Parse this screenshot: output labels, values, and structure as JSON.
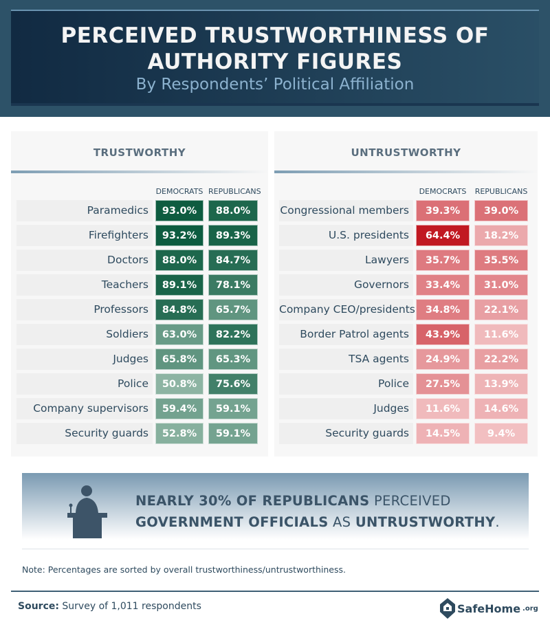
{
  "header": {
    "title_line1": "PERCEIVED TRUSTWORTHINESS OF",
    "title_line2": "AUTHORITY FIGURES",
    "subtitle": "By Respondents’ Political Affiliation"
  },
  "colors": {
    "banner": "#2d5268",
    "trust_high": "#0b5a3e",
    "trust_low": "#8fb6a5",
    "untrust_high": "#c0141e",
    "untrust_low": "#f2c0c2"
  },
  "chart_data": [
    {
      "type": "table",
      "title": "TRUSTWORTHY",
      "columns": [
        "DEMOCRATS",
        "REPUBLICANS"
      ],
      "rows": [
        {
          "label": "Paramedics",
          "values": [
            "93.0%",
            "88.0%"
          ]
        },
        {
          "label": "Firefighters",
          "values": [
            "93.2%",
            "89.3%"
          ]
        },
        {
          "label": "Doctors",
          "values": [
            "88.0%",
            "84.7%"
          ]
        },
        {
          "label": "Teachers",
          "values": [
            "89.1%",
            "78.1%"
          ]
        },
        {
          "label": "Professors",
          "values": [
            "84.8%",
            "65.7%"
          ]
        },
        {
          "label": "Soldiers",
          "values": [
            "63.0%",
            "82.2%"
          ]
        },
        {
          "label": "Judges",
          "values": [
            "65.8%",
            "65.3%"
          ]
        },
        {
          "label": "Police",
          "values": [
            "50.8%",
            "75.6%"
          ]
        },
        {
          "label": "Company supervisors",
          "values": [
            "59.4%",
            "59.1%"
          ]
        },
        {
          "label": "Security guards",
          "values": [
            "52.8%",
            "59.1%"
          ]
        }
      ]
    },
    {
      "type": "table",
      "title": "UNTRUSTWORTHY",
      "columns": [
        "DEMOCRATS",
        "REPUBLICANS"
      ],
      "rows": [
        {
          "label": "Congressional members",
          "values": [
            "39.3%",
            "39.0%"
          ]
        },
        {
          "label": "U.S. presidents",
          "values": [
            "64.4%",
            "18.2%"
          ]
        },
        {
          "label": "Lawyers",
          "values": [
            "35.7%",
            "35.5%"
          ]
        },
        {
          "label": "Governors",
          "values": [
            "33.4%",
            "31.0%"
          ]
        },
        {
          "label": "Company CEO/presidents",
          "values": [
            "34.8%",
            "22.1%"
          ]
        },
        {
          "label": "Border Patrol agents",
          "values": [
            "43.9%",
            "11.6%"
          ]
        },
        {
          "label": "TSA agents",
          "values": [
            "24.9%",
            "22.2%"
          ]
        },
        {
          "label": "Police",
          "values": [
            "27.5%",
            "13.9%"
          ]
        },
        {
          "label": "Judges",
          "values": [
            "11.6%",
            "14.6%"
          ]
        },
        {
          "label": "Security guards",
          "values": [
            "14.5%",
            "9.4%"
          ]
        }
      ]
    }
  ],
  "callout": {
    "icon": "podium-speaker-icon",
    "bold1": "NEARLY 30% OF REPUBLICANS",
    "text1": " PERCEIVED",
    "bold2": "GOVERNMENT OFFICIALS",
    "text2": " AS ",
    "bold3": "UNTRUSTWORTHY",
    "text3": "."
  },
  "note": "Note: Percentages are sorted by overall trustworthiness/untrustworthiness.",
  "source": {
    "label": "Source:",
    "text": " Survey of 1,011 respondents"
  },
  "logo": {
    "name": "SafeHome",
    "suffix": ".org",
    "icon": "house-shield-icon"
  }
}
